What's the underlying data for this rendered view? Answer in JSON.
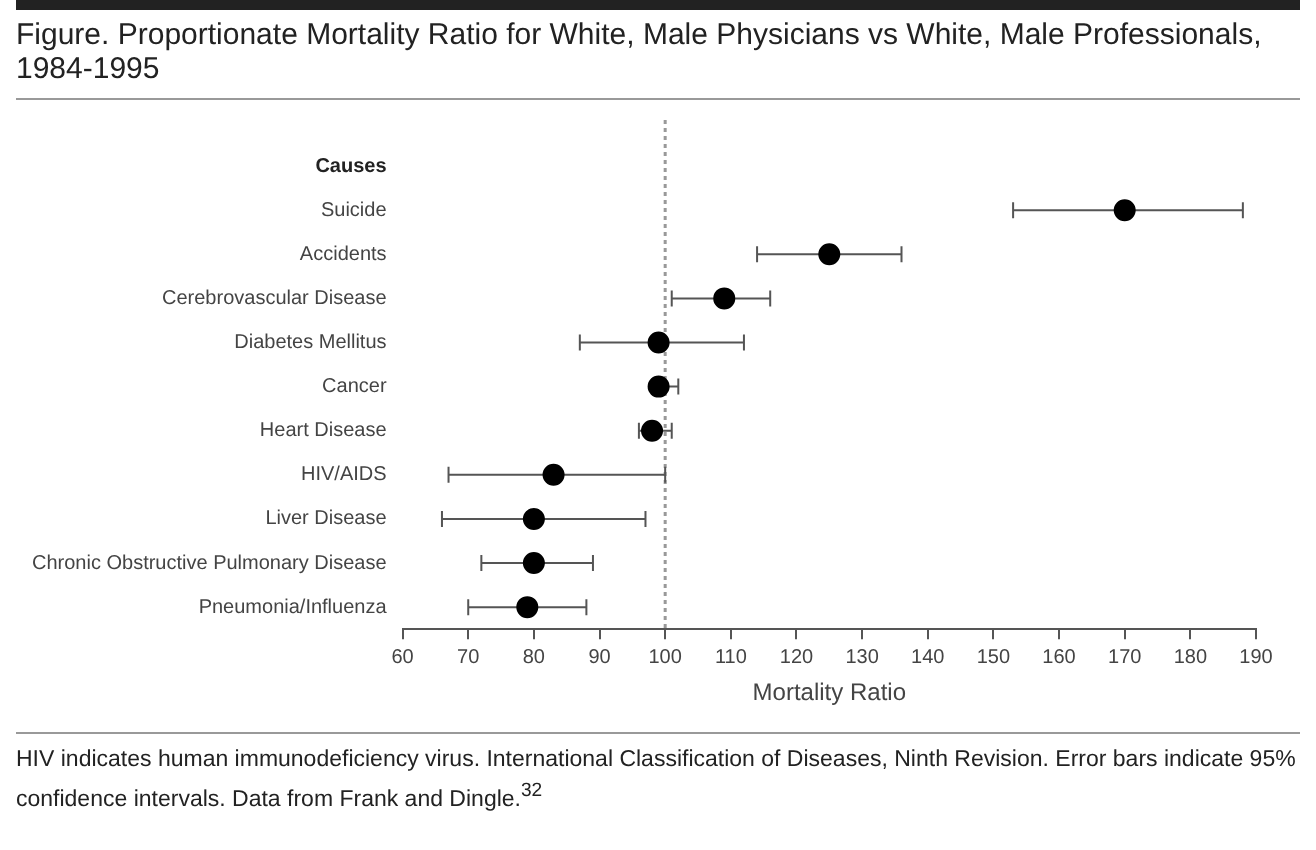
{
  "chart_data": {
    "type": "scatter",
    "title": "Figure. Proportionate Mortality Ratio for White, Male Physicians vs White, Male Professionals, 1984-1995",
    "xlabel": "Mortality Ratio",
    "ylabel": "Causes",
    "categories": [
      "Suicide",
      "Accidents",
      "Cerebrovascular Disease",
      "Diabetes Mellitus",
      "Cancer",
      "Heart Disease",
      "HIV/AIDS",
      "Liver Disease",
      "Chronic Obstructive Pulmonary Disease",
      "Pneumonia/Influenza"
    ],
    "series": [
      {
        "color": "#000000",
        "values": [
          170,
          125,
          109,
          99,
          99,
          98,
          83,
          80,
          80,
          79
        ],
        "errors": [
          [
            153,
            188
          ],
          [
            114,
            136
          ],
          [
            101,
            116
          ],
          [
            87,
            112
          ],
          [
            98,
            102
          ],
          [
            96,
            101
          ],
          [
            67,
            100
          ],
          [
            66,
            97
          ],
          [
            72,
            89
          ],
          [
            70,
            88
          ]
        ]
      }
    ],
    "xlim": [
      60,
      190
    ],
    "xticks": [
      60,
      70,
      80,
      90,
      100,
      110,
      120,
      130,
      140,
      150,
      160,
      170,
      180,
      190
    ],
    "ref_lines": [
      {
        "axis": "x",
        "value": 100,
        "color": "#999999",
        "line_style": "dotted"
      }
    ],
    "orientation": "horizontal",
    "marker": "circle",
    "grid": false,
    "legend": false,
    "annotations": [
      "HIV indicates human immunodeficiency virus. International Classification of Diseases, Ninth Revision. Error bars indicate 95% confidence intervals. Data from Frank and Dingle.$^{32}$"
    ]
  }
}
